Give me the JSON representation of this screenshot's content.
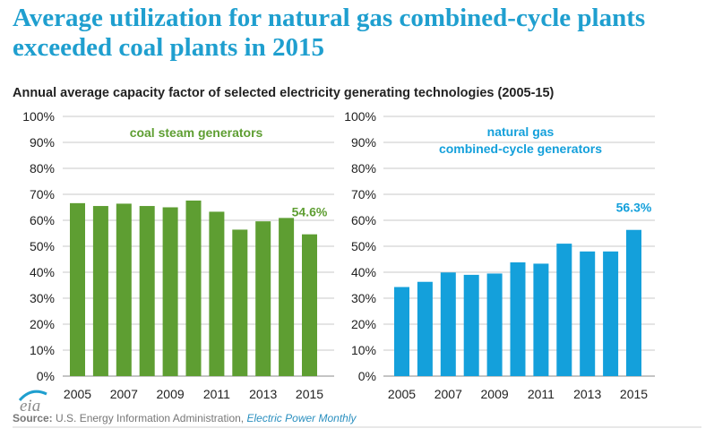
{
  "headline": "Average utilization for natural gas combined-cycle plants exceeded coal plants in 2015",
  "subtitle": "Annual average capacity factor of selected electricity generating technologies (2005-15)",
  "logo": {
    "text": "eia"
  },
  "source": {
    "label": "Source:",
    "org": "U.S. Energy Information Administration,",
    "publication": "Electric Power Monthly"
  },
  "colors": {
    "coal": "#5e9e32",
    "gas": "#14a0db",
    "headline": "#1f9fcf",
    "grid": "#c8c8c8"
  },
  "chart_data": [
    {
      "type": "bar",
      "title": "coal steam generators",
      "x": [
        2005,
        2006,
        2007,
        2008,
        2009,
        2010,
        2011,
        2012,
        2013,
        2014,
        2015
      ],
      "x_tick_labels": [
        "2005",
        "2007",
        "2009",
        "2011",
        "2013",
        "2015"
      ],
      "values": [
        66.6,
        65.5,
        66.4,
        65.5,
        65.0,
        67.6,
        63.3,
        56.4,
        59.6,
        60.9,
        54.6
      ],
      "ylim": [
        0,
        100
      ],
      "y_tick_labels": [
        "0%",
        "10%",
        "20%",
        "30%",
        "40%",
        "50%",
        "60%",
        "70%",
        "80%",
        "90%",
        "100%"
      ],
      "annotation": {
        "label": "54.6%",
        "x": 2015
      },
      "grid": true,
      "color": "#5e9e32"
    },
    {
      "type": "bar",
      "title": "natural gas combined-cycle generators",
      "title_lines": [
        "natural gas",
        "combined-cycle generators"
      ],
      "x": [
        2005,
        2006,
        2007,
        2008,
        2009,
        2010,
        2011,
        2012,
        2013,
        2014,
        2015
      ],
      "x_tick_labels": [
        "2005",
        "2007",
        "2009",
        "2011",
        "2013",
        "2015"
      ],
      "values": [
        34.3,
        36.3,
        39.9,
        39.0,
        39.5,
        43.8,
        43.3,
        51.0,
        48.0,
        48.0,
        56.3
      ],
      "ylim": [
        0,
        100
      ],
      "y_tick_labels": [
        "0%",
        "10%",
        "20%",
        "30%",
        "40%",
        "50%",
        "60%",
        "70%",
        "80%",
        "90%",
        "100%"
      ],
      "annotation": {
        "label": "56.3%",
        "x": 2015
      },
      "grid": true,
      "color": "#14a0db"
    }
  ]
}
